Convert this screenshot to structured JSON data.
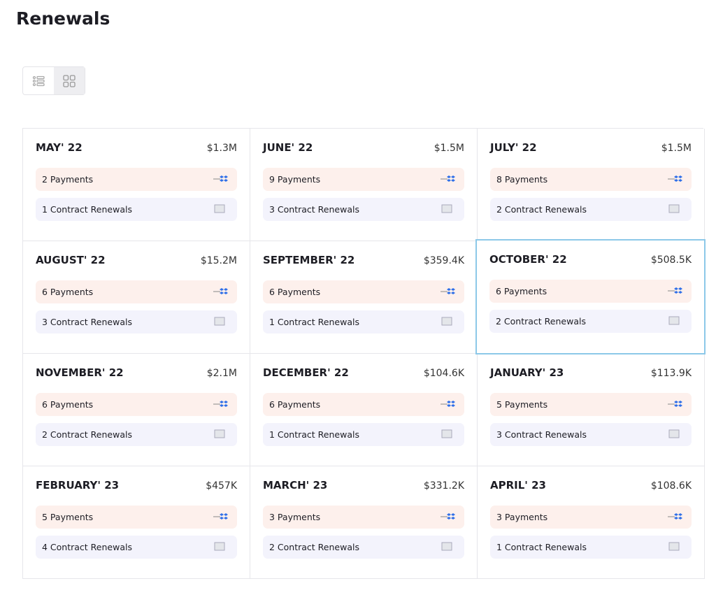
{
  "header": {
    "title": "Renewals"
  },
  "months": [
    {
      "name": "MAY' 22",
      "amount": "$1.3M",
      "payments": "2 Payments",
      "renewals": "1 Contract Renewals"
    },
    {
      "name": "JUNE' 22",
      "amount": "$1.5M",
      "payments": "9 Payments",
      "renewals": "3 Contract Renewals"
    },
    {
      "name": "JULY' 22",
      "amount": "$1.5M",
      "payments": "8 Payments",
      "renewals": "2 Contract Renewals"
    },
    {
      "name": "AUGUST' 22",
      "amount": "$15.2M",
      "payments": "6 Payments",
      "renewals": "3 Contract Renewals"
    },
    {
      "name": "SEPTEMBER' 22",
      "amount": "$359.4K",
      "payments": "6 Payments",
      "renewals": "1 Contract Renewals"
    },
    {
      "name": "OCTOBER' 22",
      "amount": "$508.5K",
      "payments": "6 Payments",
      "renewals": "2 Contract Renewals"
    },
    {
      "name": "NOVEMBER' 22",
      "amount": "$2.1M",
      "payments": "6 Payments",
      "renewals": "2 Contract Renewals"
    },
    {
      "name": "DECEMBER' 22",
      "amount": "$104.6K",
      "payments": "6 Payments",
      "renewals": "1 Contract Renewals"
    },
    {
      "name": "JANUARY' 23",
      "amount": "$113.9K",
      "payments": "5 Payments",
      "renewals": "3 Contract Renewals"
    },
    {
      "name": "FEBRUARY' 23",
      "amount": "$457K",
      "payments": "5 Payments",
      "renewals": "4 Contract Renewals"
    },
    {
      "name": "MARCH' 23",
      "amount": "$331.2K",
      "payments": "3 Payments",
      "renewals": "2 Contract Renewals"
    },
    {
      "name": "APRIL' 23",
      "amount": "$108.6K",
      "payments": "3 Payments",
      "renewals": "1 Contract Renewals"
    }
  ]
}
